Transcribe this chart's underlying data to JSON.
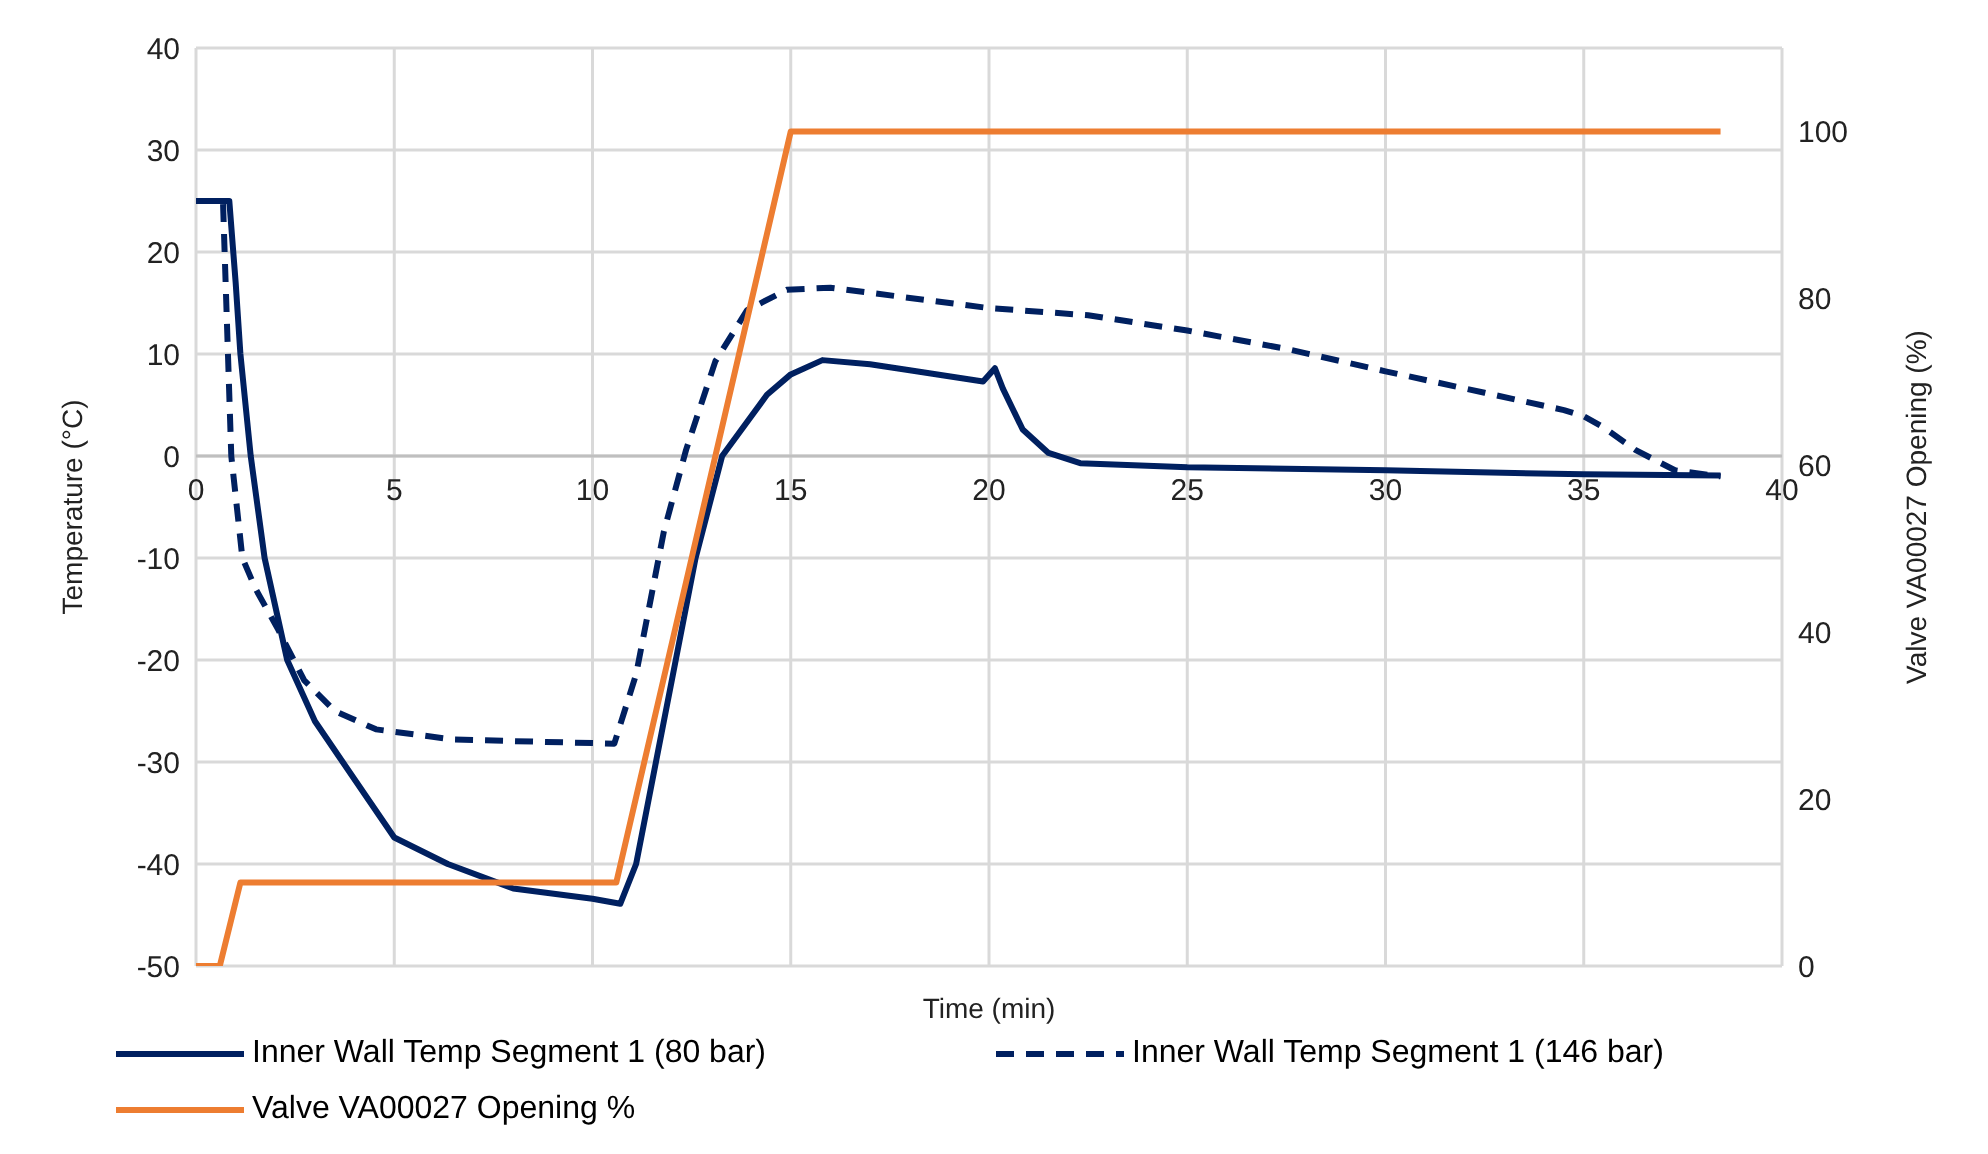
{
  "chart_data": {
    "type": "line",
    "xlabel": "Time (min)",
    "ylabel": "Temperature  (°C)",
    "y2label": "Valve VA00027  Opening (%)",
    "xlim": [
      0,
      40
    ],
    "xticks": [
      0,
      5,
      10,
      15,
      20,
      25,
      30,
      35,
      40
    ],
    "ylim": [
      -50,
      40
    ],
    "yticks": [
      -50,
      -40,
      -30,
      -20,
      -10,
      0,
      10,
      20,
      30,
      40
    ],
    "y2lim": [
      0,
      110
    ],
    "y2ticks": [
      0,
      20,
      40,
      60,
      80,
      100
    ],
    "grid": true,
    "legend": "bottom",
    "marker": "none",
    "series": [
      {
        "name": "Inner Wall Temp Segment 1 (80 bar)",
        "color": "#002060",
        "line_style": "solid",
        "x": [
          0,
          0.84,
          1.0,
          1.12,
          1.38,
          1.73,
          2.3,
          3.0,
          3.7,
          5,
          6.35,
          8,
          10,
          10.7,
          11.1,
          12.1,
          12.6,
          13.27,
          14.4,
          15,
          15.8,
          17,
          18,
          19.85,
          20.15,
          20.35,
          20.85,
          21.5,
          22.3,
          25,
          30,
          35,
          38.45
        ],
        "values": [
          25,
          25,
          17,
          10,
          0,
          -10,
          -20,
          -26,
          -30,
          -37.4,
          -40,
          -42.4,
          -43.4,
          -43.9,
          -40,
          -20,
          -10,
          0,
          6,
          8,
          9.4,
          9,
          8.4,
          7.3,
          8.6,
          6.6,
          2.6,
          0.3,
          -0.7,
          -1.1,
          -1.4,
          -1.8,
          -1.9
        ]
      },
      {
        "name": "Inner Wall Temp Segment 1 (146 bar)",
        "color": "#002060",
        "line_style": "dashed",
        "x": [
          0,
          0.68,
          0.89,
          1.17,
          1.5,
          2.07,
          2.73,
          3.5,
          4.54,
          6.5,
          8.5,
          10.55,
          11.1,
          11.8,
          12.36,
          13.1,
          13.9,
          14.9,
          16,
          17,
          20,
          22.5,
          25,
          27.5,
          30,
          32.5,
          34.5,
          35,
          35.5,
          36.3,
          37.3,
          38.45
        ],
        "values": [
          25,
          25,
          0,
          -10,
          -13,
          -17,
          -22,
          -25,
          -26.8,
          -27.8,
          -28,
          -28.2,
          -21.4,
          -7.4,
          0.6,
          9.3,
          14.3,
          16.3,
          16.5,
          16,
          14.5,
          13.8,
          12.3,
          10.5,
          8.3,
          6.2,
          4.5,
          3.9,
          2.8,
          0.6,
          -1.4,
          -2
        ]
      },
      {
        "name": "Valve VA00027 Opening %",
        "color": "#ed7d31",
        "line_style": "solid",
        "axis": "y2",
        "x": [
          0,
          0.6,
          1.12,
          10.6,
          15,
          38.45
        ],
        "values": [
          0,
          0,
          10,
          10,
          100,
          100
        ]
      }
    ]
  }
}
